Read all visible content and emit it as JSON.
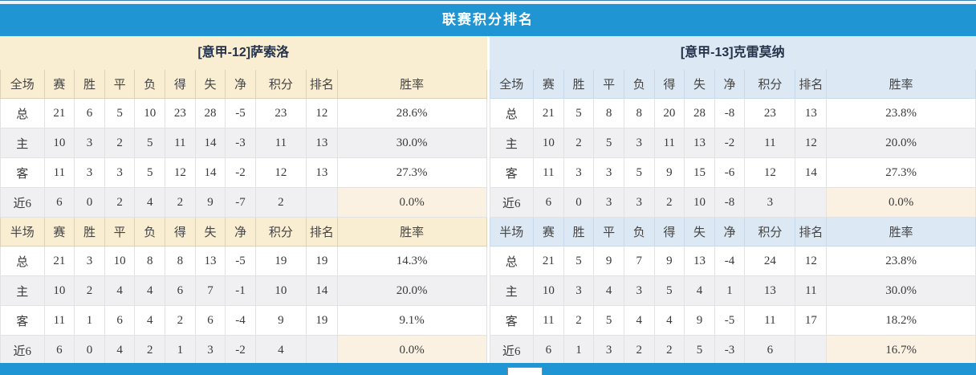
{
  "header": {
    "title": "联赛积分排名"
  },
  "columns": {
    "full_label": "全场",
    "half_label": "半场",
    "stats": [
      "赛",
      "胜",
      "平",
      "负",
      "得",
      "失",
      "净"
    ],
    "points": "积分",
    "rank": "排名",
    "win_rate": "胜率"
  },
  "theme": {
    "bar_blue": "#2095d4",
    "left_header_cream": "#faeed2",
    "right_header_blue": "#dce9f5",
    "stripe_gray": "#f0f0f2",
    "points_red": "#e6432d",
    "rank_blue": "#4c8bc8",
    "home_label_red": "#c63c3c",
    "away_label_blue": "#2d2db8"
  },
  "teams": [
    {
      "name": "[意甲-12]萨索洛",
      "full": {
        "rows": [
          {
            "type": "total",
            "label": "总",
            "values": [
              "21",
              "6",
              "5",
              "10",
              "23",
              "28",
              "-5"
            ],
            "points": "23",
            "rank": "12",
            "win_rate": "28.6%"
          },
          {
            "type": "home",
            "label": "主",
            "values": [
              "10",
              "3",
              "2",
              "5",
              "11",
              "14",
              "-3"
            ],
            "points": "11",
            "rank": "13",
            "win_rate": "30.0%"
          },
          {
            "type": "away",
            "label": "客",
            "values": [
              "11",
              "3",
              "3",
              "5",
              "12",
              "14",
              "-2"
            ],
            "points": "12",
            "rank": "13",
            "win_rate": "27.3%"
          },
          {
            "type": "recent6",
            "label": "近6",
            "values": [
              "6",
              "0",
              "2",
              "4",
              "2",
              "9",
              "-7"
            ],
            "points": "2",
            "rank": "",
            "win_rate": "0.0%"
          }
        ]
      },
      "half": {
        "rows": [
          {
            "type": "total",
            "label": "总",
            "values": [
              "21",
              "3",
              "10",
              "8",
              "8",
              "13",
              "-5"
            ],
            "points": "19",
            "rank": "19",
            "win_rate": "14.3%"
          },
          {
            "type": "home",
            "label": "主",
            "values": [
              "10",
              "2",
              "4",
              "4",
              "6",
              "7",
              "-1"
            ],
            "points": "10",
            "rank": "14",
            "win_rate": "20.0%"
          },
          {
            "type": "away",
            "label": "客",
            "values": [
              "11",
              "1",
              "6",
              "4",
              "2",
              "6",
              "-4"
            ],
            "points": "9",
            "rank": "19",
            "win_rate": "9.1%"
          },
          {
            "type": "recent6",
            "label": "近6",
            "values": [
              "6",
              "0",
              "4",
              "2",
              "1",
              "3",
              "-2"
            ],
            "points": "4",
            "rank": "",
            "win_rate": "0.0%"
          }
        ]
      }
    },
    {
      "name": "[意甲-13]克雷莫纳",
      "full": {
        "rows": [
          {
            "type": "total",
            "label": "总",
            "values": [
              "21",
              "5",
              "8",
              "8",
              "20",
              "28",
              "-8"
            ],
            "points": "23",
            "rank": "13",
            "win_rate": "23.8%"
          },
          {
            "type": "home",
            "label": "主",
            "values": [
              "10",
              "2",
              "5",
              "3",
              "11",
              "13",
              "-2"
            ],
            "points": "11",
            "rank": "12",
            "win_rate": "20.0%"
          },
          {
            "type": "away",
            "label": "客",
            "values": [
              "11",
              "3",
              "3",
              "5",
              "9",
              "15",
              "-6"
            ],
            "points": "12",
            "rank": "14",
            "win_rate": "27.3%"
          },
          {
            "type": "recent6",
            "label": "近6",
            "values": [
              "6",
              "0",
              "3",
              "3",
              "2",
              "10",
              "-8"
            ],
            "points": "3",
            "rank": "",
            "win_rate": "0.0%"
          }
        ]
      },
      "half": {
        "rows": [
          {
            "type": "total",
            "label": "总",
            "values": [
              "21",
              "5",
              "9",
              "7",
              "9",
              "13",
              "-4"
            ],
            "points": "24",
            "rank": "12",
            "win_rate": "23.8%"
          },
          {
            "type": "home",
            "label": "主",
            "values": [
              "10",
              "3",
              "4",
              "3",
              "5",
              "4",
              "1"
            ],
            "points": "13",
            "rank": "11",
            "win_rate": "30.0%"
          },
          {
            "type": "away",
            "label": "客",
            "values": [
              "11",
              "2",
              "5",
              "4",
              "4",
              "9",
              "-5"
            ],
            "points": "11",
            "rank": "17",
            "win_rate": "18.2%"
          },
          {
            "type": "recent6",
            "label": "近6",
            "values": [
              "6",
              "1",
              "3",
              "2",
              "2",
              "5",
              "-3"
            ],
            "points": "6",
            "rank": "",
            "win_rate": "16.7%"
          }
        ]
      }
    }
  ]
}
